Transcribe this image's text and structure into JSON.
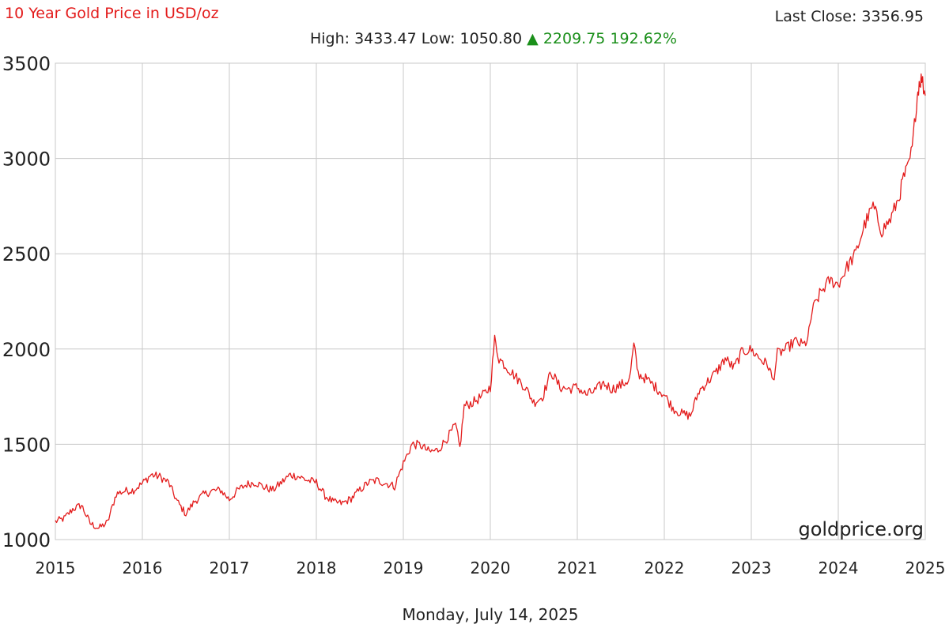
{
  "header": {
    "title": "10 Year Gold Price in USD/oz",
    "last_close_label": "Last Close: 3356.95",
    "high_label": "High: 3433.47",
    "low_label": "Low: 1050.80",
    "change_arrow": "▲",
    "change_value": "2209.75",
    "change_percent": "192.62%"
  },
  "footer": {
    "date": "Monday, July 14, 2025"
  },
  "watermark": "goldprice.org",
  "colors": {
    "line": "#e31b1b",
    "title": "#e31b1b",
    "up": "#1a8f1a",
    "grid": "#c8c8c8"
  },
  "chart_data": {
    "type": "line",
    "title": "10 Year Gold Price in USD/oz",
    "xlabel": "",
    "ylabel": "",
    "xlim": [
      2015,
      2025
    ],
    "ylim": [
      1000,
      3500
    ],
    "x_ticks": [
      2015,
      2016,
      2017,
      2018,
      2019,
      2020,
      2021,
      2022,
      2023,
      2024,
      2025
    ],
    "y_ticks": [
      1000,
      1500,
      2000,
      2500,
      3000,
      3500
    ],
    "grid": true,
    "legend": "none",
    "series": [
      {
        "color": "#e31b1b",
        "x": [
          2015.0,
          2015.1,
          2015.2,
          2015.3,
          2015.4,
          2015.5,
          2015.6,
          2015.7,
          2015.8,
          2015.9,
          2016.0,
          2016.1,
          2016.2,
          2016.3,
          2016.4,
          2016.5,
          2016.6,
          2016.7,
          2016.8,
          2016.9,
          2017.0,
          2017.1,
          2017.2,
          2017.3,
          2017.4,
          2017.5,
          2017.6,
          2017.7,
          2017.8,
          2017.9,
          2018.0,
          2018.1,
          2018.2,
          2018.3,
          2018.4,
          2018.5,
          2018.6,
          2018.7,
          2018.8,
          2018.9,
          2019.0,
          2019.1,
          2019.2,
          2019.3,
          2019.4,
          2019.5,
          2019.6,
          2019.65,
          2019.7,
          2019.8,
          2019.9,
          2020.0,
          2020.05,
          2020.1,
          2020.2,
          2020.3,
          2020.4,
          2020.5,
          2020.6,
          2020.7,
          2020.8,
          2020.9,
          2021.0,
          2021.1,
          2021.2,
          2021.3,
          2021.4,
          2021.5,
          2021.6,
          2021.65,
          2021.7,
          2021.8,
          2021.9,
          2022.0,
          2022.1,
          2022.2,
          2022.3,
          2022.4,
          2022.5,
          2022.6,
          2022.7,
          2022.8,
          2022.9,
          2023.0,
          2023.1,
          2023.2,
          2023.25,
          2023.3,
          2023.4,
          2023.5,
          2023.6,
          2023.65,
          2023.7,
          2023.8,
          2023.9,
          2024.0,
          2024.1,
          2024.2,
          2024.3,
          2024.4,
          2024.5,
          2024.6,
          2024.7,
          2024.75,
          2024.8,
          2024.85,
          2024.9,
          2024.93,
          2024.96,
          2025.0
        ],
        "y": [
          1095,
          1110,
          1160,
          1180,
          1085,
          1060,
          1090,
          1240,
          1255,
          1260,
          1295,
          1340,
          1330,
          1300,
          1200,
          1135,
          1200,
          1235,
          1255,
          1260,
          1210,
          1260,
          1290,
          1300,
          1275,
          1260,
          1300,
          1340,
          1330,
          1310,
          1300,
          1230,
          1195,
          1190,
          1215,
          1260,
          1300,
          1310,
          1295,
          1280,
          1400,
          1500,
          1495,
          1460,
          1470,
          1530,
          1600,
          1480,
          1700,
          1720,
          1750,
          1800,
          2050,
          1950,
          1900,
          1850,
          1800,
          1720,
          1750,
          1880,
          1800,
          1790,
          1800,
          1760,
          1780,
          1820,
          1790,
          1810,
          1840,
          2020,
          1870,
          1840,
          1800,
          1760,
          1690,
          1660,
          1650,
          1780,
          1830,
          1880,
          1950,
          1900,
          1990,
          1995,
          1950,
          1910,
          1830,
          1975,
          2000,
          2040,
          2020,
          2050,
          2200,
          2300,
          2360,
          2340,
          2430,
          2500,
          2650,
          2750,
          2620,
          2680,
          2800,
          2900,
          2950,
          3050,
          3300,
          3400,
          3420,
          3330
        ]
      }
    ]
  }
}
